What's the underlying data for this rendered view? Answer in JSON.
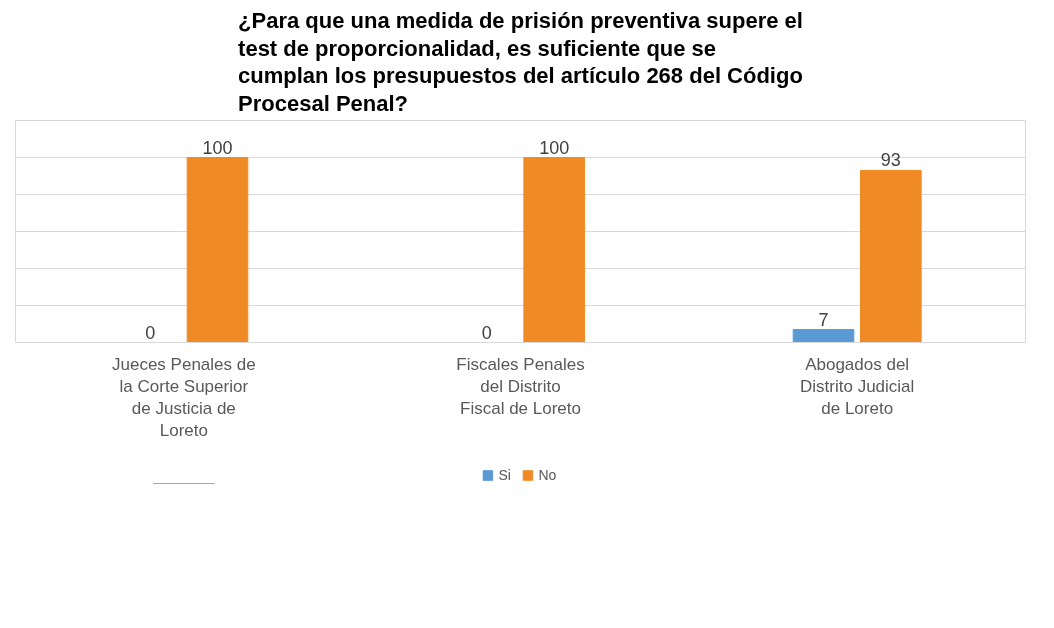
{
  "chart_data": {
    "type": "bar",
    "title": "¿Para que una medida de prisión preventiva supere el test de proporcionalidad, es suficiente que se cumplan los presupuestos del artículo 268 del Código Procesal Penal?",
    "categories": [
      "Jueces Penales de la Corte Superior de Justicia de Loreto",
      "Fiscales Penales del Distrito Fiscal de Loreto",
      "Abogados del Distrito Judicial de Loreto"
    ],
    "series": [
      {
        "name": "Si",
        "color": "#5b9bd5",
        "values": [
          0,
          0,
          7
        ]
      },
      {
        "name": "No",
        "color": "#f08a24",
        "values": [
          100,
          100,
          93
        ]
      }
    ],
    "ylim": [
      0,
      120
    ],
    "yticks": [
      {
        "value": 0,
        "label": null
      },
      {
        "value": 20,
        "label": null
      },
      {
        "value": 40,
        "label": null
      },
      {
        "value": 60,
        "label": null
      },
      {
        "value": 80,
        "label": null
      },
      {
        "value": 100,
        "label": null
      },
      {
        "value": 120,
        "label": null
      }
    ],
    "grid": "y",
    "legend": "bottom",
    "data_labels": true,
    "tick_labels": "x"
  }
}
